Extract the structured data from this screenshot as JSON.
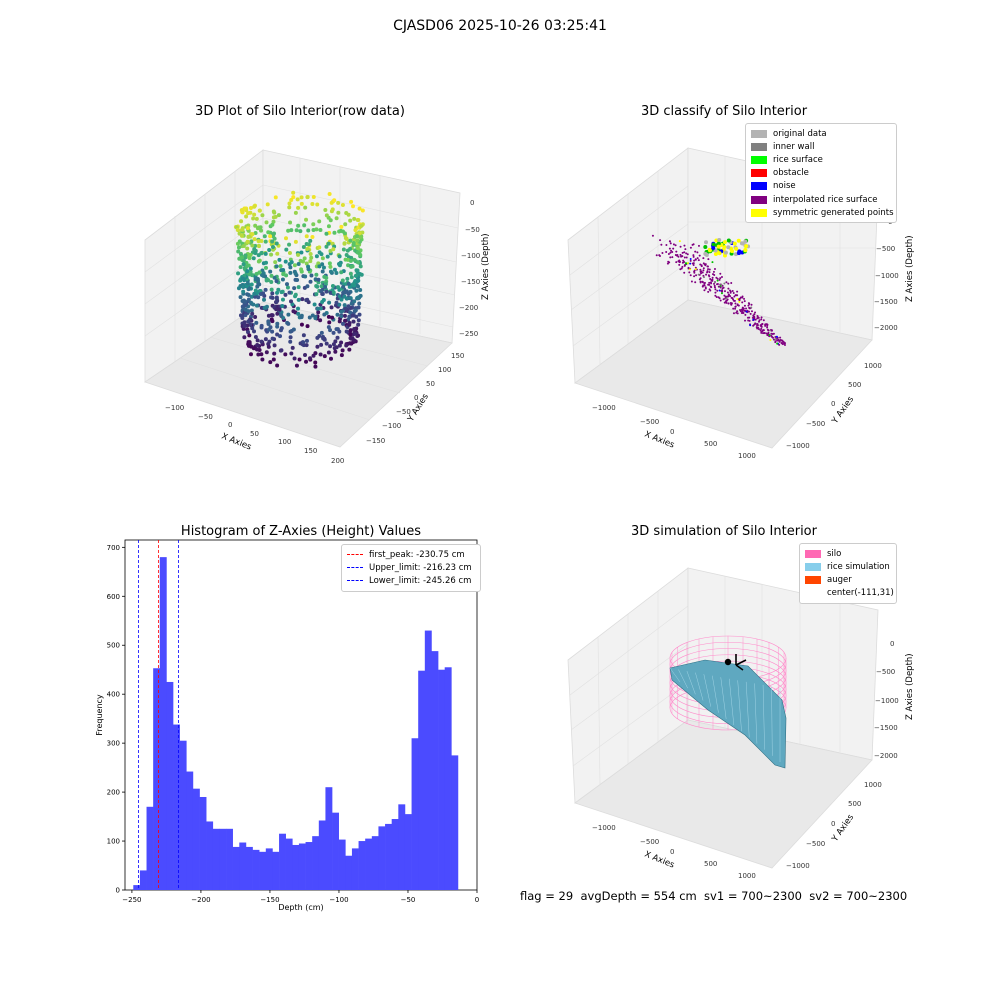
{
  "figure": {
    "suptitle": "CJASD06 2025-10-26 03:25:41",
    "footer": "flag = 29  avgDepth = 554 cm  sv1 = 700~2300  sv2 = 700~2300"
  },
  "panels": {
    "raw": {
      "title": "3D Plot of Silo Interior(row data)",
      "xlabel": "X Axies",
      "ylabel": "Y Axies",
      "zlabel": "Z Axies (Depth)",
      "xticks": [
        "−100",
        "−50",
        "0",
        "50",
        "100",
        "150",
        "200"
      ],
      "yticks": [
        "150",
        "100",
        "50",
        "0",
        "−50",
        "−100",
        "−150"
      ],
      "zticks": [
        "0",
        "−50",
        "−100",
        "−150",
        "−200",
        "−250"
      ]
    },
    "classify": {
      "title": "3D classify of Silo Interior",
      "xlabel": "X Axies",
      "ylabel": "Y Axies",
      "zlabel": "Z Axies (Depth)",
      "xticks": [
        "−1000",
        "−500",
        "0",
        "500",
        "1000"
      ],
      "yticks": [
        "1000",
        "500",
        "0",
        "−500",
        "−1000"
      ],
      "zticks": [
        "0",
        "−500",
        "−1000",
        "−1500",
        "−2000"
      ],
      "legend": [
        {
          "label": "original data",
          "color": "#b3b3b3"
        },
        {
          "label": "inner wall",
          "color": "#808080"
        },
        {
          "label": "rice surface",
          "color": "#00ff00"
        },
        {
          "label": "obstacle",
          "color": "#ff0000"
        },
        {
          "label": "noise",
          "color": "#0000ff"
        },
        {
          "label": "interpolated rice surface",
          "color": "#800080"
        },
        {
          "label": "symmetric generated points",
          "color": "#ffff00"
        }
      ]
    },
    "simulation": {
      "title": "3D simulation of Silo Interior",
      "xlabel": "X Axies",
      "ylabel": "Y Axies",
      "zlabel": "Z Axies (Depth)",
      "xticks": [
        "−1000",
        "−500",
        "0",
        "500",
        "1000"
      ],
      "yticks": [
        "1000",
        "500",
        "0",
        "−500",
        "−1000"
      ],
      "zticks": [
        "0",
        "−500",
        "−1000",
        "−1500",
        "−2000"
      ],
      "legend": [
        {
          "label": "silo",
          "color": "#ff69b4"
        },
        {
          "label": "rice simulation",
          "color": "#87ceeb"
        },
        {
          "label": "auger",
          "color": "#ff4500"
        },
        {
          "label": "center(-111,31)",
          "color": "#ffffff"
        }
      ]
    }
  },
  "chart_data": [
    {
      "type": "bar",
      "title": "Histogram of Z-Axies (Height) Values",
      "xlabel": "Depth (cm)",
      "ylabel": "Frequency",
      "color": "#4b4bff",
      "xlim": [
        -255,
        0
      ],
      "ylim": [
        0,
        715
      ],
      "xticks": [
        -250,
        -200,
        -150,
        -100,
        -50,
        0
      ],
      "xtick_labels": [
        "−250",
        "−200",
        "−150",
        "−100",
        "−50",
        "0"
      ],
      "yticks": [
        0,
        100,
        200,
        300,
        400,
        500,
        600,
        700
      ],
      "bin_start": -249,
      "bin_width": 4.8,
      "values": [
        10,
        40,
        170,
        453,
        680,
        425,
        338,
        305,
        242,
        207,
        190,
        140,
        125,
        125,
        125,
        88,
        97,
        88,
        82,
        78,
        85,
        78,
        115,
        105,
        92,
        95,
        98,
        110,
        142,
        210,
        158,
        103,
        70,
        85,
        100,
        105,
        110,
        130,
        135,
        145,
        175,
        155,
        310,
        448,
        530,
        488,
        450,
        455,
        275
      ],
      "vlines": [
        {
          "name": "first_peak: -230.75 cm",
          "x": -230.75,
          "color": "#ff0000"
        },
        {
          "name": "Upper_limit: -216.23 cm",
          "x": -216.23,
          "color": "#0000ff"
        },
        {
          "name": "Lower_limit: -245.26 cm",
          "x": -245.26,
          "color": "#0000ff"
        }
      ]
    }
  ]
}
